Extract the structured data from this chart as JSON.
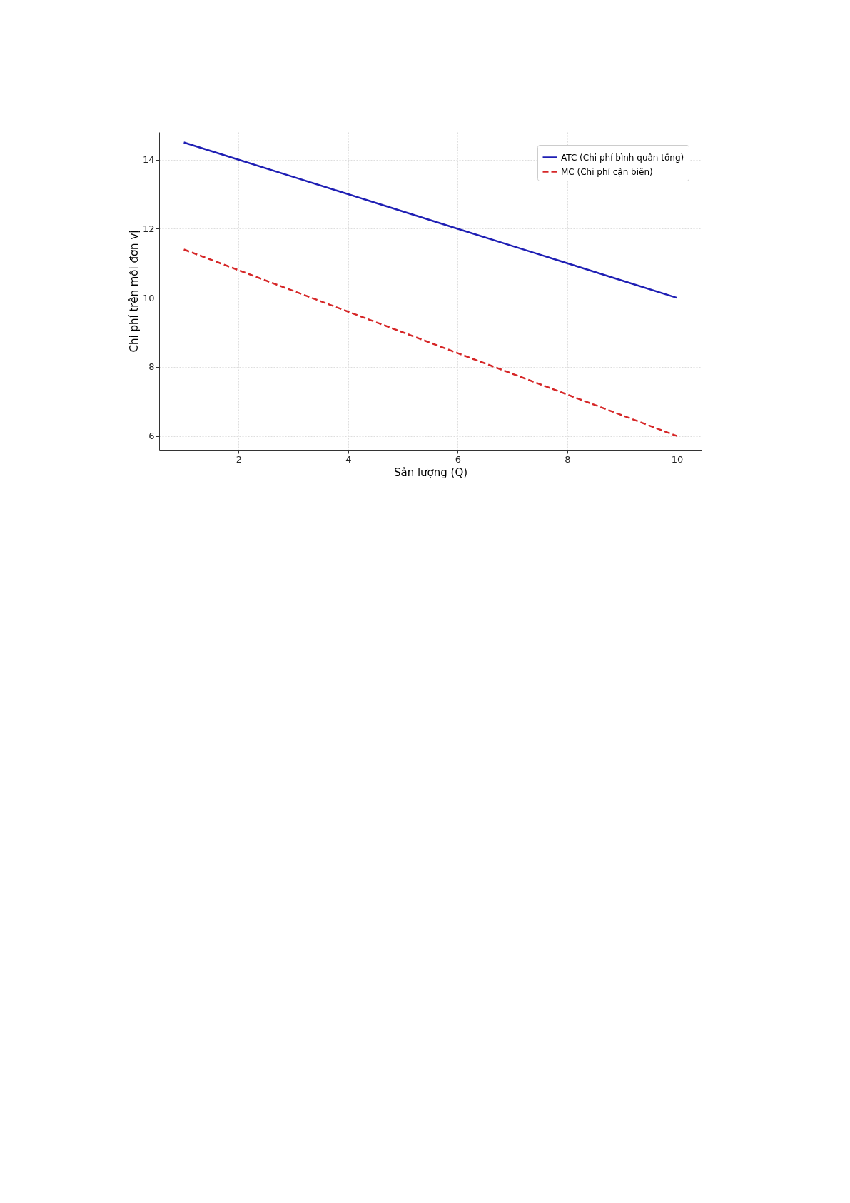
{
  "chart_data": {
    "type": "line",
    "xlabel": "Sản lượng (Q)",
    "ylabel": "Chi phí trên mỗi đơn vị",
    "x": [
      1,
      2,
      3,
      4,
      5,
      6,
      7,
      8,
      9,
      10
    ],
    "series": [
      {
        "name": "ATC (Chi phí bình quân tổng)",
        "color": "#1f1fb4",
        "line_style": "solid",
        "values": [
          14.5,
          14,
          13.5,
          13,
          12.5,
          12,
          11.5,
          11,
          10.5,
          10
        ]
      },
      {
        "name": "MC (Chi phí cận biên)",
        "color": "#d62728",
        "line_style": "dashed",
        "values": [
          11.4,
          10.8,
          10.2,
          9.6,
          9,
          8.4,
          7.8,
          7.2,
          6.6,
          6
        ]
      }
    ],
    "xlim": [
      0.55,
      10.45
    ],
    "ylim": [
      5.6,
      14.8
    ],
    "xticks": [
      2,
      4,
      6,
      8,
      10
    ],
    "yticks": [
      6,
      8,
      10,
      12,
      14
    ],
    "grid": true,
    "legend": "top right",
    "marker": "none"
  }
}
